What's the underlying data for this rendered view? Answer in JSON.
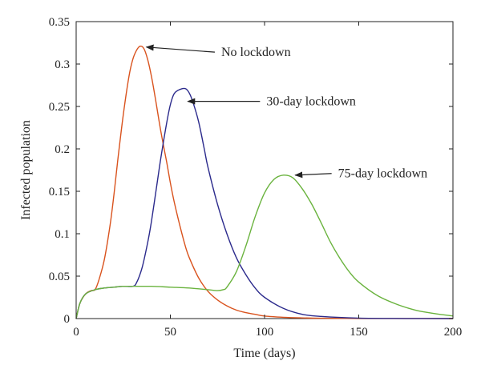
{
  "chart_data": {
    "type": "line",
    "title": "",
    "xlabel": "Time (days)",
    "ylabel": "Infected population",
    "xlim": [
      0,
      200
    ],
    "ylim": [
      0,
      0.35
    ],
    "xticks": [
      0,
      50,
      100,
      150,
      200
    ],
    "yticks": [
      0,
      0.05,
      0.1,
      0.15,
      0.2,
      0.25,
      0.3,
      0.35
    ],
    "grid": false,
    "legend": "none",
    "series": [
      {
        "color": "#d9531e",
        "x": [
          0,
          2,
          5,
          8,
          10,
          12,
          15,
          18,
          20,
          22,
          25,
          28,
          30,
          32,
          34,
          36,
          38,
          40,
          42,
          45,
          48,
          50,
          52,
          55,
          58,
          60,
          65,
          70,
          75,
          80,
          85,
          90,
          95,
          100,
          110,
          120,
          130,
          150,
          175,
          200
        ],
        "y": [
          0,
          0.018,
          0.029,
          0.033,
          0.034,
          0.045,
          0.07,
          0.11,
          0.145,
          0.185,
          0.24,
          0.285,
          0.305,
          0.316,
          0.321,
          0.318,
          0.305,
          0.285,
          0.26,
          0.22,
          0.185,
          0.16,
          0.138,
          0.11,
          0.085,
          0.072,
          0.048,
          0.032,
          0.022,
          0.015,
          0.01,
          0.007,
          0.005,
          0.003,
          0.0015,
          0.0008,
          0.0004,
          0.0001,
          3e-05,
          0
        ]
      },
      {
        "color": "#2b2a8c",
        "x": [
          0,
          2,
          5,
          10,
          15,
          20,
          25,
          30,
          32,
          35,
          38,
          40,
          43,
          45,
          48,
          50,
          52,
          55,
          58,
          60,
          62,
          65,
          68,
          70,
          75,
          80,
          85,
          90,
          95,
          100,
          110,
          120,
          130,
          150,
          175,
          200
        ],
        "y": [
          0,
          0.018,
          0.029,
          0.034,
          0.036,
          0.037,
          0.038,
          0.038,
          0.042,
          0.06,
          0.09,
          0.115,
          0.16,
          0.19,
          0.23,
          0.252,
          0.265,
          0.27,
          0.271,
          0.266,
          0.255,
          0.232,
          0.2,
          0.178,
          0.135,
          0.1,
          0.072,
          0.052,
          0.036,
          0.025,
          0.012,
          0.005,
          0.0025,
          0.0005,
          0.0001,
          0
        ]
      },
      {
        "color": "#6ab33e",
        "x": [
          0,
          2,
          5,
          10,
          15,
          20,
          25,
          30,
          40,
          50,
          60,
          70,
          75,
          78,
          80,
          85,
          90,
          95,
          100,
          105,
          110,
          115,
          120,
          125,
          130,
          135,
          140,
          145,
          150,
          160,
          170,
          180,
          190,
          200
        ],
        "y": [
          0,
          0.018,
          0.029,
          0.034,
          0.036,
          0.037,
          0.038,
          0.038,
          0.038,
          0.037,
          0.036,
          0.034,
          0.033,
          0.034,
          0.037,
          0.055,
          0.085,
          0.12,
          0.148,
          0.164,
          0.169,
          0.166,
          0.153,
          0.135,
          0.113,
          0.09,
          0.071,
          0.055,
          0.043,
          0.027,
          0.017,
          0.01,
          0.006,
          0.003
        ]
      }
    ],
    "annotations": [
      {
        "text": "No lockdown",
        "point": [
          36,
          0.32
        ],
        "text_pos": [
          77,
          0.314
        ]
      },
      {
        "text": "30-day lockdown",
        "point": [
          58,
          0.256
        ],
        "text_pos": [
          101,
          0.256
        ]
      },
      {
        "text": "75-day lockdown",
        "point": [
          115,
          0.169
        ],
        "text_pos": [
          139,
          0.171
        ]
      }
    ]
  }
}
